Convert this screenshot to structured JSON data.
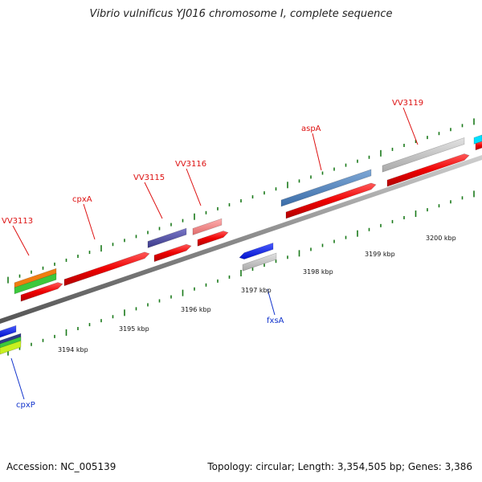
{
  "title": "Vibrio vulnificus YJ016 chromosome I, complete sequence",
  "footer": {
    "accession": "Accession: NC_005139",
    "summary": "Topology: circular; Length: 3,354,505 bp; Genes: 3,386"
  },
  "colors": {
    "backbone": "#888888",
    "tick": "#1a7a1a",
    "forward_label": "#dd1111",
    "reverse_label": "#1133cc"
  },
  "scale_labels": [
    "3194 kbp",
    "3195 kbp",
    "3196 kbp",
    "3197 kbp",
    "3198 kbp",
    "3199 kbp",
    "3200 kbp"
  ],
  "gene_labels": {
    "forward": [
      "VV3113",
      "cpxA",
      "VV3115",
      "VV3116",
      "aspA",
      "VV3119"
    ],
    "reverse": [
      "fxsA",
      "cpxP"
    ]
  }
}
